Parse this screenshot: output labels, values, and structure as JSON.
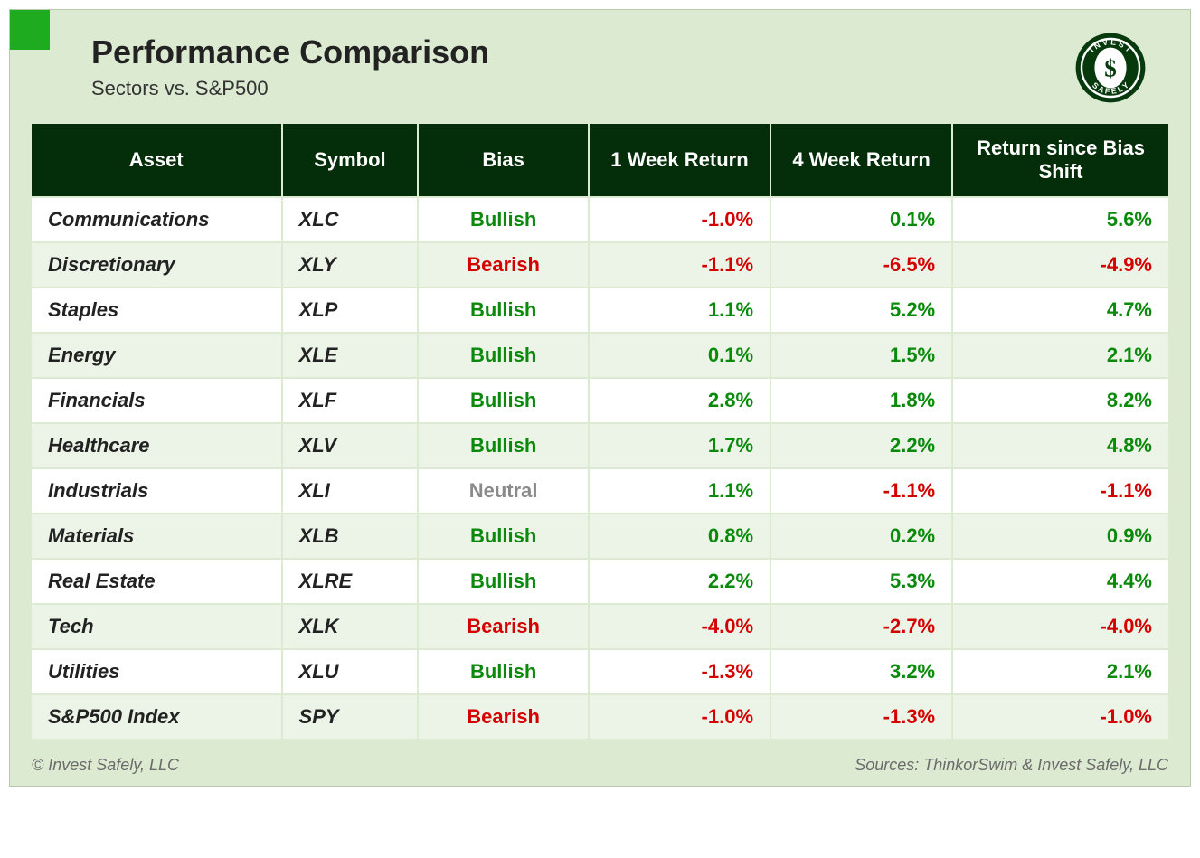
{
  "header": {
    "title": "Performance Comparison",
    "subtitle": "Sectors vs. S&P500"
  },
  "columns": [
    {
      "label": "Asset",
      "width": "22%"
    },
    {
      "label": "Symbol",
      "width": "12%"
    },
    {
      "label": "Bias",
      "width": "15%"
    },
    {
      "label": "1 Week Return",
      "width": "16%"
    },
    {
      "label": "4 Week Return",
      "width": "16%"
    },
    {
      "label": "Return since Bias Shift",
      "width": "19%"
    }
  ],
  "rows": [
    {
      "asset": "Communications",
      "symbol": "XLC",
      "bias": "Bullish",
      "w1": "-1.0%",
      "w4": "0.1%",
      "shift": "5.6%"
    },
    {
      "asset": "Discretionary",
      "symbol": "XLY",
      "bias": "Bearish",
      "w1": "-1.1%",
      "w4": "-6.5%",
      "shift": "-4.9%"
    },
    {
      "asset": "Staples",
      "symbol": "XLP",
      "bias": "Bullish",
      "w1": "1.1%",
      "w4": "5.2%",
      "shift": "4.7%"
    },
    {
      "asset": "Energy",
      "symbol": "XLE",
      "bias": "Bullish",
      "w1": "0.1%",
      "w4": "1.5%",
      "shift": "2.1%"
    },
    {
      "asset": "Financials",
      "symbol": "XLF",
      "bias": "Bullish",
      "w1": "2.8%",
      "w4": "1.8%",
      "shift": "8.2%"
    },
    {
      "asset": "Healthcare",
      "symbol": "XLV",
      "bias": "Bullish",
      "w1": "1.7%",
      "w4": "2.2%",
      "shift": "4.8%"
    },
    {
      "asset": "Industrials",
      "symbol": "XLI",
      "bias": "Neutral",
      "w1": "1.1%",
      "w4": "-1.1%",
      "shift": "-1.1%"
    },
    {
      "asset": "Materials",
      "symbol": "XLB",
      "bias": "Bullish",
      "w1": "0.8%",
      "w4": "0.2%",
      "shift": "0.9%"
    },
    {
      "asset": "Real Estate",
      "symbol": "XLRE",
      "bias": "Bullish",
      "w1": "2.2%",
      "w4": "5.3%",
      "shift": "4.4%"
    },
    {
      "asset": "Tech",
      "symbol": "XLK",
      "bias": "Bearish",
      "w1": "-4.0%",
      "w4": "-2.7%",
      "shift": "-4.0%"
    },
    {
      "asset": "Utilities",
      "symbol": "XLU",
      "bias": "Bullish",
      "w1": "-1.3%",
      "w4": "3.2%",
      "shift": "2.1%"
    },
    {
      "asset": "S&P500 Index",
      "symbol": "SPY",
      "bias": "Bearish",
      "w1": "-1.0%",
      "w4": "-1.3%",
      "shift": "-1.0%",
      "summary": true
    }
  ],
  "footer": {
    "left": "© Invest Safely, LLC",
    "right": "Sources: ThinkorSwim & Invest Safely, LLC"
  },
  "colors": {
    "positive": "#0a8a0a",
    "negative": "#d40000",
    "neutral": "#8a8a8a",
    "header_bg": "#042e09",
    "card_bg": "#dcead2",
    "accent": "#1fab1f"
  }
}
